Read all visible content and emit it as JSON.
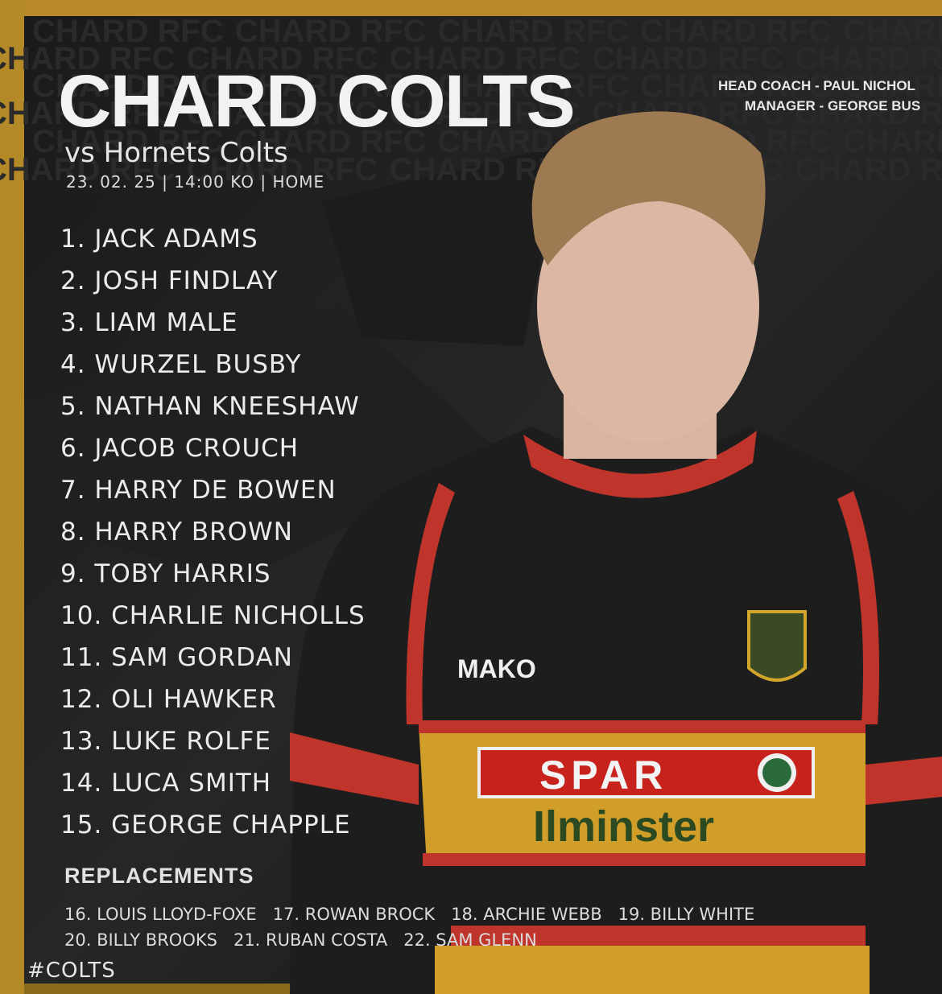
{
  "header": {
    "watermark": "CHARD RFC",
    "title": "CHARD COLTS",
    "opponent": "vs Hornets Colts",
    "details": "23. 02. 25 | 14:00 KO | HOME",
    "staff": [
      "HEAD COACH - PAUL NICHOL",
      "MANAGER - GEORGE BUS"
    ]
  },
  "starting_xv": [
    "1. JACK ADAMS",
    "2. JOSH FINDLAY",
    "3. LIAM MALE",
    "4. WURZEL BUSBY",
    "5. NATHAN KNEESHAW",
    "6. JACOB CROUCH",
    "7. HARRY DE BOWEN",
    "8. HARRY BROWN",
    "9. TOBY HARRIS",
    "10. CHARLIE NICHOLLS",
    "11. SAM GORDAN",
    "12. OLI HAWKER",
    "13. LUKE ROLFE",
    "14. LUCA SMITH",
    "15. GEORGE CHAPPLE"
  ],
  "replacements": {
    "heading": "REPLACEMENTS",
    "rows": [
      [
        "16. LOUIS LLOYD-FOXE",
        "17. ROWAN BROCK",
        "18. ARCHIE WEBB",
        "19. BILLY WHITE"
      ],
      [
        "20. BILLY BROOKS",
        "21. RUBAN COSTA",
        "22. SAM GLENN"
      ]
    ]
  },
  "shirt": {
    "kit_brand": "MAKO",
    "sponsor": "SPAR",
    "sponsor_town": "Ilminster"
  },
  "hashtag": "#COLTS"
}
